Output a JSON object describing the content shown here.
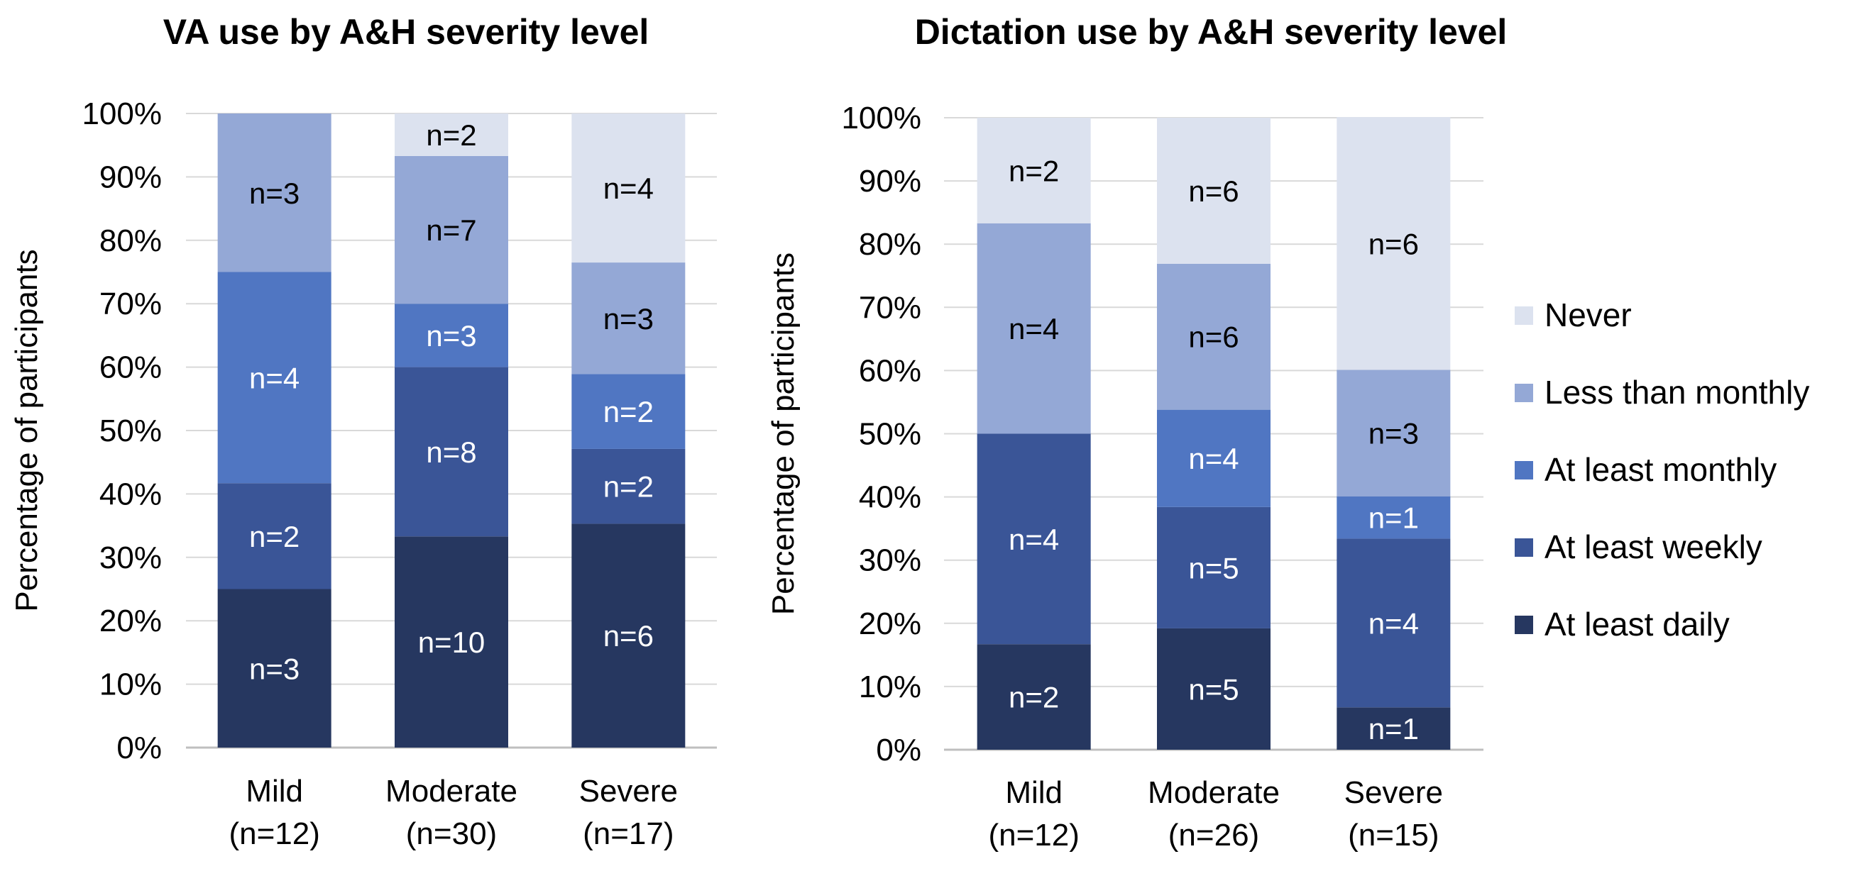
{
  "colors": {
    "never": "#dce2ef",
    "less_than_monthly": "#94a8d6",
    "at_least_monthly": "#5076c2",
    "at_least_weekly": "#3a5597",
    "at_least_daily": "#263760",
    "grid": "#d9d9d9",
    "axis": "#bfbfbf",
    "text": "#000000",
    "label_light": "#ffffff",
    "label_dark": "#000000"
  },
  "legend": [
    {
      "key": "never",
      "label": "Never"
    },
    {
      "key": "less_than_monthly",
      "label": "Less than monthly"
    },
    {
      "key": "at_least_monthly",
      "label": "At least monthly"
    },
    {
      "key": "at_least_weekly",
      "label": "At least weekly"
    },
    {
      "key": "at_least_daily",
      "label": "At least daily"
    }
  ],
  "chart_data": [
    {
      "type": "bar",
      "stacked": true,
      "title": "VA use by A&H severity level",
      "ylabel": "Percentage of participants",
      "xlabel": "",
      "ylim": [
        0,
        100
      ],
      "yticks": [
        "0%",
        "10%",
        "20%",
        "30%",
        "40%",
        "50%",
        "60%",
        "70%",
        "80%",
        "90%",
        "100%"
      ],
      "categories": [
        {
          "name": "Mild",
          "sub": "(n=12)"
        },
        {
          "name": "Moderate",
          "sub": "(n=30)"
        },
        {
          "name": "Severe",
          "sub": "(n=17)"
        }
      ],
      "series": [
        {
          "key": "at_least_daily",
          "name": "At least daily",
          "values": [
            25,
            33.3,
            35.3
          ],
          "labels": [
            "n=3",
            "n=10",
            "n=6"
          ]
        },
        {
          "key": "at_least_weekly",
          "name": "At least weekly",
          "values": [
            16.7,
            26.7,
            11.8
          ],
          "labels": [
            "n=2",
            "n=8",
            "n=2"
          ]
        },
        {
          "key": "at_least_monthly",
          "name": "At least monthly",
          "values": [
            33.3,
            10,
            11.8
          ],
          "labels": [
            "n=4",
            "n=3",
            "n=2"
          ]
        },
        {
          "key": "less_than_monthly",
          "name": "Less than monthly",
          "values": [
            25,
            23.3,
            17.6
          ],
          "labels": [
            "n=3",
            "n=7",
            "n=3"
          ]
        },
        {
          "key": "never",
          "name": "Never",
          "values": [
            0,
            6.7,
            23.5
          ],
          "labels": [
            "",
            "n=2",
            "n=4"
          ]
        }
      ]
    },
    {
      "type": "bar",
      "stacked": true,
      "title": "Dictation use by A&H severity level",
      "ylabel": "Percentage of participants",
      "xlabel": "",
      "ylim": [
        0,
        100
      ],
      "yticks": [
        "0%",
        "10%",
        "20%",
        "30%",
        "40%",
        "50%",
        "60%",
        "70%",
        "80%",
        "90%",
        "100%"
      ],
      "categories": [
        {
          "name": "Mild",
          "sub": "(n=12)"
        },
        {
          "name": "Moderate",
          "sub": "(n=26)"
        },
        {
          "name": "Severe",
          "sub": "(n=15)"
        }
      ],
      "series": [
        {
          "key": "at_least_daily",
          "name": "At least daily",
          "values": [
            16.7,
            19.2,
            6.7
          ],
          "labels": [
            "n=2",
            "n=5",
            "n=1"
          ]
        },
        {
          "key": "at_least_weekly",
          "name": "At least weekly",
          "values": [
            33.3,
            19.2,
            26.7
          ],
          "labels": [
            "n=4",
            "n=5",
            "n=4"
          ]
        },
        {
          "key": "at_least_monthly",
          "name": "At least monthly",
          "values": [
            0,
            15.4,
            6.7
          ],
          "labels": [
            "",
            "n=4",
            "n=1"
          ]
        },
        {
          "key": "less_than_monthly",
          "name": "Less than monthly",
          "values": [
            33.3,
            23.1,
            20
          ],
          "labels": [
            "n=4",
            "n=6",
            "n=3"
          ]
        },
        {
          "key": "never",
          "name": "Never",
          "values": [
            16.7,
            23.1,
            40
          ],
          "labels": [
            "n=2",
            "n=6",
            "n=6"
          ]
        }
      ]
    }
  ]
}
